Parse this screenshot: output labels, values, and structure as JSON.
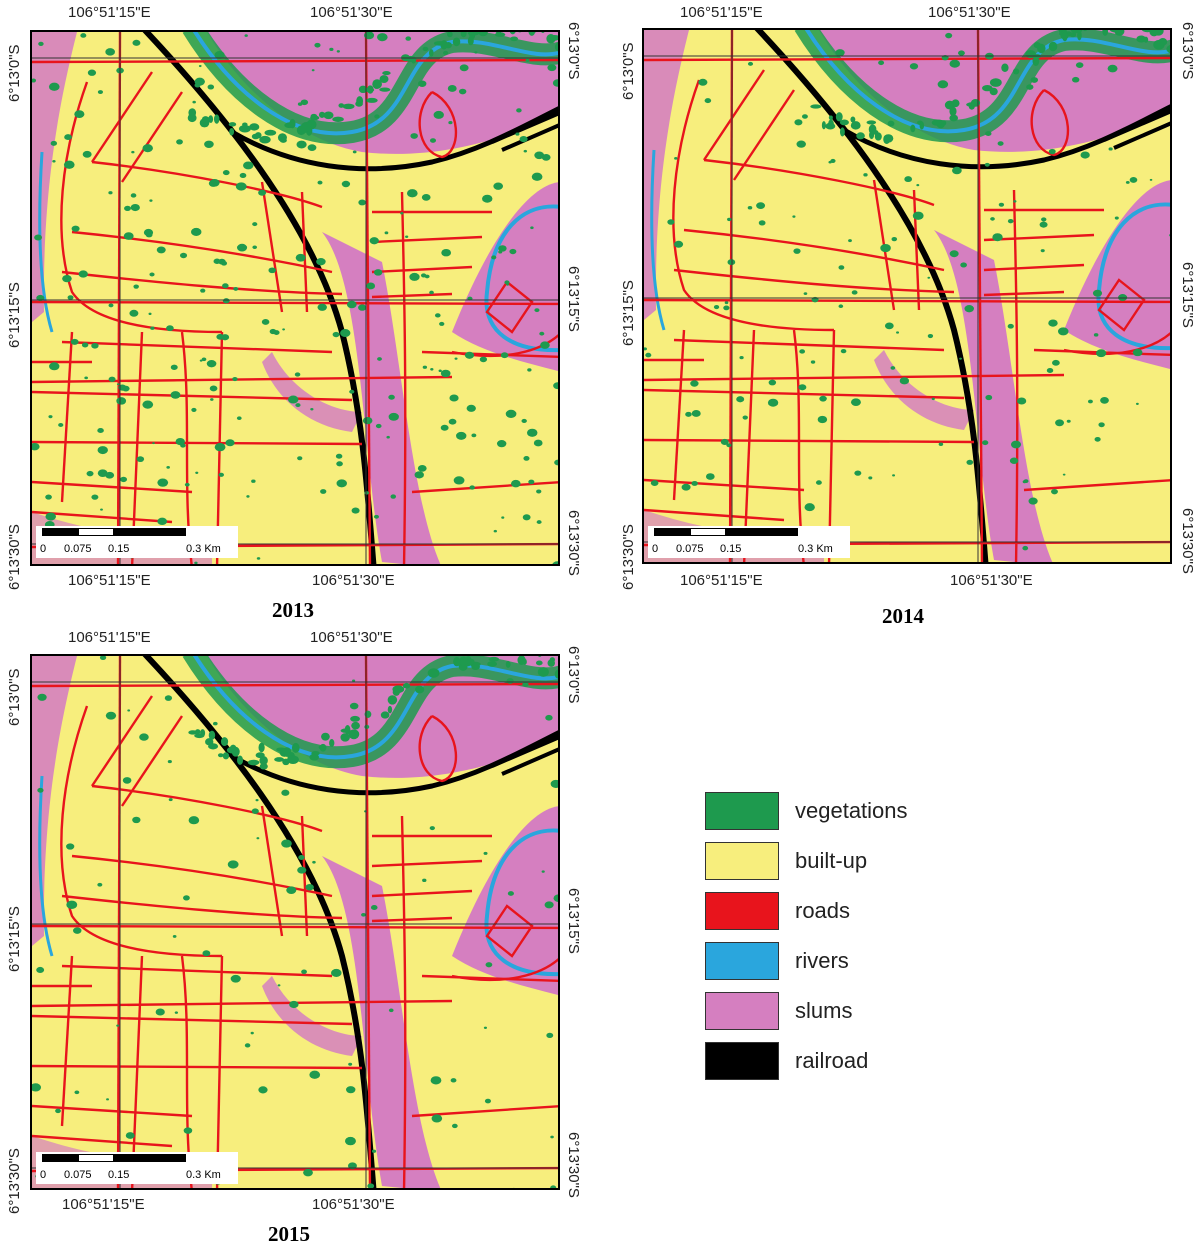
{
  "labels": {
    "lon_left": "106°51'15\"E",
    "lon_right": "106°51'30\"E",
    "lat_top": "6°13'0\"S",
    "lat_mid": "6°13'15\"S",
    "lat_bottom": "6°13'30\"S"
  },
  "scalebar": {
    "ticks": [
      "0",
      "0.075",
      "0.15",
      "0.3 Km"
    ]
  },
  "maps": [
    {
      "year": "2013"
    },
    {
      "year": "2014"
    },
    {
      "year": "2015"
    }
  ],
  "legend": [
    {
      "label": "vegetations",
      "color": "#1e9a4e"
    },
    {
      "label": "built-up",
      "color": "#f7ee7d"
    },
    {
      "label": "roads",
      "color": "#e8141c"
    },
    {
      "label": "rivers",
      "color": "#2aa6dd"
    },
    {
      "label": "slums",
      "color": "#d57fc0"
    },
    {
      "label": "railroad",
      "color": "#000000"
    }
  ]
}
